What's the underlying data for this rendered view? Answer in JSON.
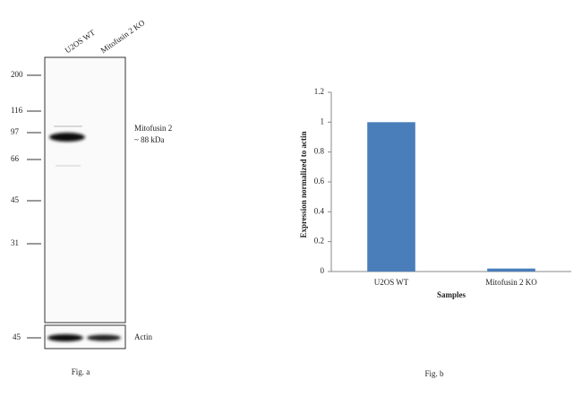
{
  "blot": {
    "lanes": [
      "U2OS WT",
      "Mitofusin 2 KO"
    ],
    "markers": [
      200,
      116,
      97,
      66,
      45,
      31
    ],
    "band_label": "Mitofusin 2",
    "band_size": "~ 88 kDa",
    "actin_marker": 45,
    "actin_label": "Actin",
    "caption": "Fig. a"
  },
  "chart_data": {
    "type": "bar",
    "categories": [
      "U2OS WT",
      "Mitofusin 2 KO"
    ],
    "values": [
      1,
      0.02
    ],
    "color": "#4a7ebb",
    "ylim": [
      0,
      1.2
    ],
    "yticks": [
      0,
      0.2,
      0.4,
      0.6,
      0.8,
      1,
      1.2
    ],
    "xlabel": "Samples",
    "ylabel": "Expression normalized to actin",
    "caption": "Fig. b"
  }
}
